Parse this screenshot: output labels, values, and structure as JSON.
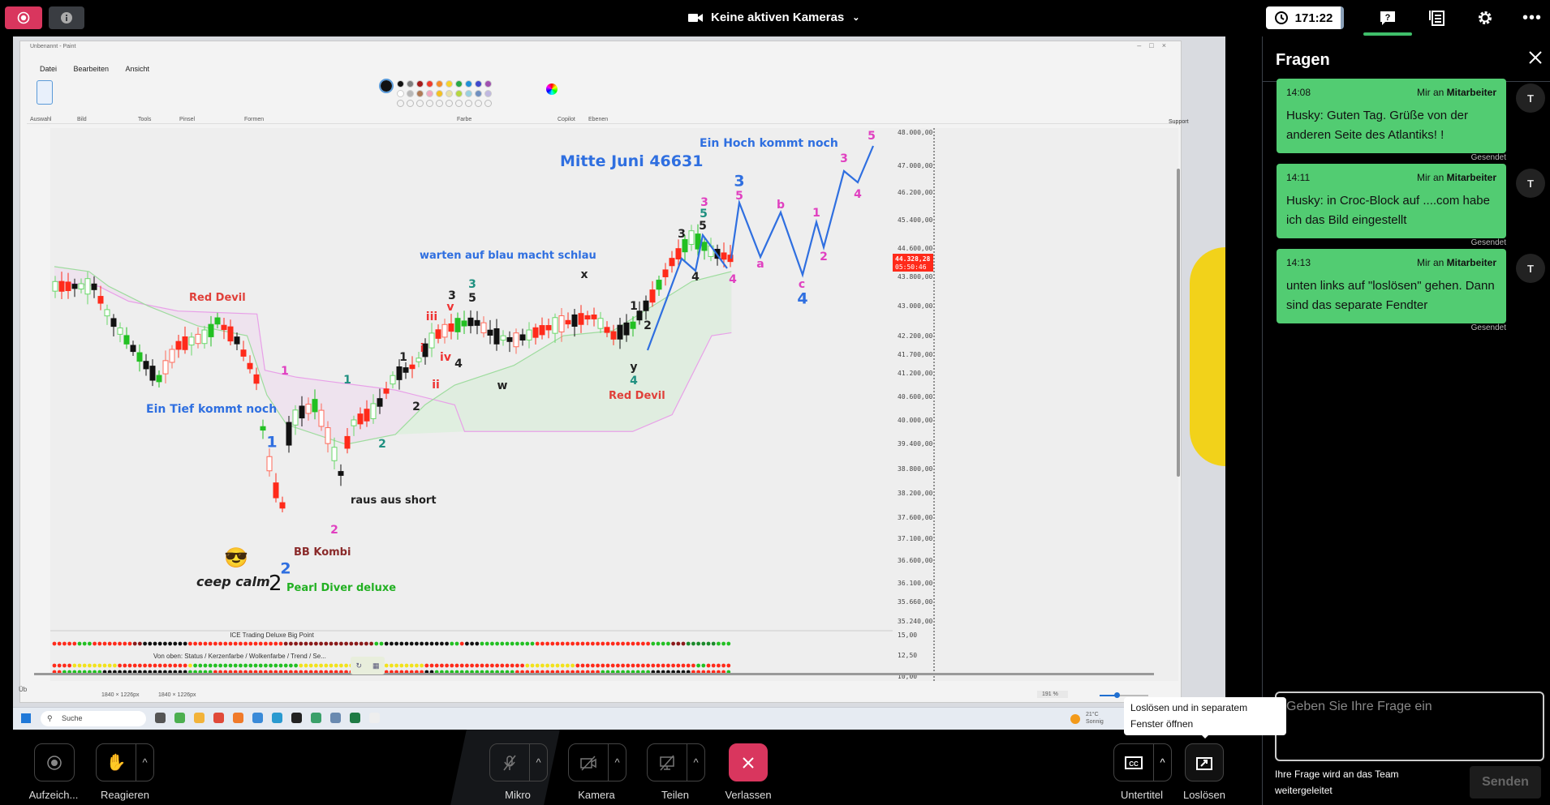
{
  "topbar": {
    "record_icon": "record-icon",
    "info_icon": "info-icon",
    "camera_status": "Keine aktiven Kameras",
    "timer": "171:22",
    "icons": [
      "question-chat-icon",
      "notes-icon",
      "gear-icon",
      "more-icon"
    ],
    "accent": "#3fbf6a"
  },
  "paint": {
    "title": "Unbenannt - Paint",
    "menu": [
      "Datei",
      "Bearbeiten",
      "Ansicht"
    ],
    "groups": [
      "Auswahl",
      "Bild",
      "Tools",
      "Pinsel",
      "Formen",
      "Farbe",
      "Copilot",
      "Ebenen"
    ],
    "support": "Support",
    "status_size1": "1840 × 1226px",
    "status_size2": "1840 × 1226px",
    "zoom": "191 %",
    "left_cut": "Üb",
    "palette": [
      "#111111",
      "#7f7f7f",
      "#a31a1a",
      "#ee3b2e",
      "#f58a2a",
      "#f7d22a",
      "#27a845",
      "#1f8fd8",
      "#3f48cc",
      "#a050b0",
      "#ffffff",
      "#b8b8b8",
      "#b07a56",
      "#f0a8c0",
      "#f5c020",
      "#e8e0a8",
      "#b5d640",
      "#98d0e0",
      "#7090c0",
      "#c0b8e0"
    ]
  },
  "chart_view": {
    "price_ticks": [
      "48.000,00",
      "47.000,00",
      "46.200,00",
      "45.400,00",
      "44.600,00",
      "43.800,00",
      "43.000,00",
      "42.200,00",
      "41.700,00",
      "41.200,00",
      "40.600,00",
      "40.000,00",
      "39.400,00",
      "38.800,00",
      "38.200,00",
      "37.600,00",
      "37.100,00",
      "36.600,00",
      "36.100,00",
      "35.660,00",
      "35.240,00"
    ],
    "indicator_ticks": [
      "15,00",
      "12,50",
      "10,00"
    ],
    "current_price": "44.328,28",
    "countdown": "05:50:46",
    "annotations": {
      "mitte_juni": "Mitte Juni 46631",
      "hoch": "Ein Hoch kommt noch",
      "warten": "warten auf blau macht schlau",
      "red_devil_1": "Red Devil",
      "tief": "Ein Tief kommt noch",
      "raus": "raus aus short",
      "bb": "BB Kombi",
      "ceep": "ceep calm",
      "ceep_num": "2",
      "pearl": "Pearl Diver deluxe",
      "red_devil_2": "Red Devil"
    },
    "wave_labels": [
      {
        "t": "1",
        "c": "#e040c0"
      },
      {
        "t": "1",
        "c": "#2f6fe0"
      },
      {
        "t": "1",
        "c": "#1f9080"
      },
      {
        "t": "2",
        "c": "#1f9080"
      },
      {
        "t": "2",
        "c": "#e040c0"
      },
      {
        "t": "2",
        "c": "#2f6fe0"
      },
      {
        "t": "1",
        "c": "#222"
      },
      {
        "t": "2",
        "c": "#222"
      },
      {
        "t": "i",
        "c": "#e33"
      },
      {
        "t": "ii",
        "c": "#e33"
      },
      {
        "t": "iii",
        "c": "#e33"
      },
      {
        "t": "iv",
        "c": "#e33"
      },
      {
        "t": "v",
        "c": "#e33"
      },
      {
        "t": "3",
        "c": "#222"
      },
      {
        "t": "4",
        "c": "#222"
      },
      {
        "t": "3",
        "c": "#1f9080"
      },
      {
        "t": "5",
        "c": "#222"
      },
      {
        "t": "w",
        "c": "#222"
      },
      {
        "t": "x",
        "c": "#222"
      },
      {
        "t": "1",
        "c": "#222"
      },
      {
        "t": "2",
        "c": "#222"
      },
      {
        "t": "y",
        "c": "#222"
      },
      {
        "t": "4",
        "c": "#1f9080"
      },
      {
        "t": "3",
        "c": "#222"
      },
      {
        "t": "3",
        "c": "#e040c0"
      },
      {
        "t": "5",
        "c": "#1f9080"
      },
      {
        "t": "5",
        "c": "#222"
      },
      {
        "t": "4",
        "c": "#222"
      },
      {
        "t": "4",
        "c": "#e040c0"
      },
      {
        "t": "3",
        "c": "#2f6fe0"
      },
      {
        "t": "5",
        "c": "#e040c0"
      },
      {
        "t": "a",
        "c": "#e040c0"
      },
      {
        "t": "b",
        "c": "#e040c0"
      },
      {
        "t": "c",
        "c": "#e040c0"
      },
      {
        "t": "4",
        "c": "#2f6fe0"
      },
      {
        "t": "1",
        "c": "#e040c0"
      },
      {
        "t": "2",
        "c": "#e040c0"
      },
      {
        "t": "3",
        "c": "#e040c0"
      },
      {
        "t": "4",
        "c": "#e040c0"
      },
      {
        "t": "5",
        "c": "#e040c0"
      }
    ],
    "indicator_title": "ICE Trading Deluxe Big Point",
    "indicator_legend": "Von oben: Status / Kerzenfarbe / Wolkenfarbe / Trend / Se..."
  },
  "taskbar": {
    "search": "Suche",
    "weather_temp": "21°C",
    "weather_text": "Sonnig"
  },
  "panel": {
    "title": "Fragen",
    "close_icon": "close-icon",
    "messages": [
      {
        "time": "14:08",
        "from": "Mir an",
        "to": "Mitarbeiter",
        "text": "Husky: Guten Tag. Grüße von der anderen Seite des Atlantiks! !",
        "status": "Gesendet",
        "avatar": "T"
      },
      {
        "time": "14:11",
        "from": "Mir an",
        "to": "Mitarbeiter",
        "text": "Husky: in Croc-Block auf ....com habe ich das Bild eingestellt",
        "status": "Gesendet",
        "avatar": "T"
      },
      {
        "time": "14:13",
        "from": "Mir an",
        "to": "Mitarbeiter",
        "text": "unten links auf \"loslösen\" gehen. Dann sind das separate Fendter",
        "status": "Gesendet",
        "avatar": "T"
      }
    ],
    "input_placeholder": "Geben Sie Ihre Frage ein",
    "hint": "Ihre Frage wird an das Team weitergeleitet",
    "send": "Senden",
    "bubble_color": "#52cc72"
  },
  "controls": {
    "record": "Aufzeich...",
    "react": "Reagieren",
    "mic": "Mikro",
    "camera": "Kamera",
    "share": "Teilen",
    "leave": "Verlassen",
    "captions": "Untertitel",
    "popout": "Loslösen",
    "leave_color": "#d9365e"
  },
  "tooltip": "Loslösen und in separatem Fenster öffnen"
}
